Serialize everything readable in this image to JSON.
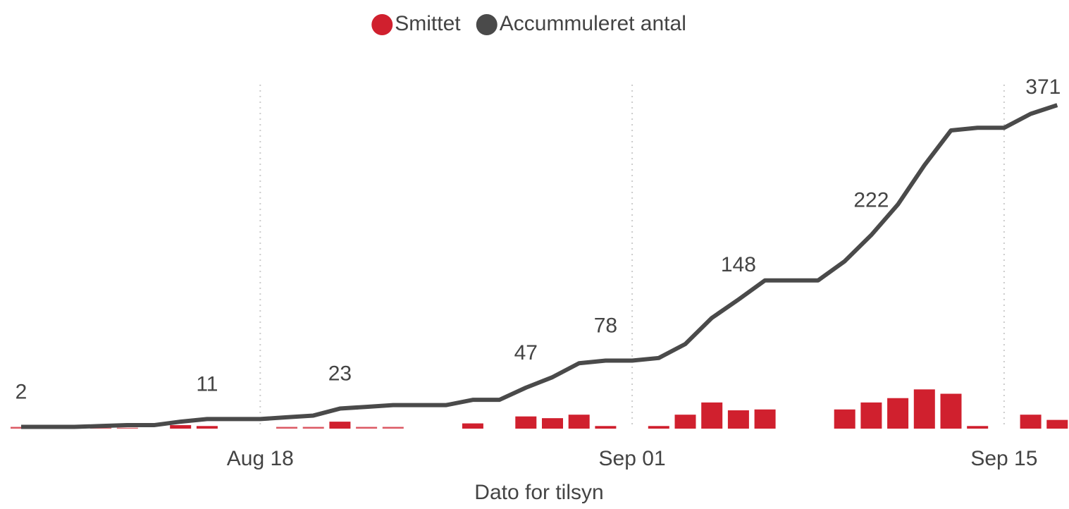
{
  "chart_data": {
    "type": "combo",
    "x_label": "Dato for tilsyn",
    "categories": [
      null,
      null,
      null,
      null,
      null,
      null,
      null,
      null,
      null,
      "Aug 18",
      null,
      null,
      null,
      null,
      null,
      null,
      null,
      null,
      null,
      null,
      null,
      null,
      null,
      "Sep 01",
      null,
      null,
      null,
      null,
      null,
      null,
      null,
      null,
      null,
      null,
      null,
      null,
      null,
      "Sep 15",
      null,
      null
    ],
    "ylim": [
      0,
      380
    ],
    "grid": true,
    "legend": "top",
    "series": [
      {
        "name": "Smittet",
        "type": "bar",
        "color": "#d0202e",
        "values": [
          2,
          null,
          null,
          1,
          1,
          null,
          4,
          3,
          null,
          null,
          2,
          2,
          8,
          2,
          2,
          null,
          null,
          6,
          null,
          14,
          12,
          16,
          3,
          null,
          3,
          16,
          30,
          21,
          22,
          null,
          null,
          22,
          30,
          35,
          45,
          40,
          3,
          null,
          16,
          10
        ]
      },
      {
        "name": "Accummuleret antal",
        "type": "line",
        "color": "#4a4a4a",
        "values": [
          2,
          2,
          2,
          3,
          4,
          4,
          8,
          11,
          11,
          11,
          13,
          15,
          23,
          25,
          27,
          27,
          27,
          33,
          33,
          47,
          59,
          75,
          78,
          78,
          81,
          97,
          127,
          148,
          170,
          170,
          170,
          192,
          222,
          257,
          302,
          342,
          345,
          345,
          361,
          371
        ],
        "value_labels": [
          "2",
          null,
          null,
          null,
          null,
          null,
          null,
          "11",
          null,
          null,
          null,
          null,
          "23",
          null,
          null,
          null,
          null,
          null,
          null,
          "47",
          null,
          null,
          "78",
          null,
          null,
          null,
          null,
          "148",
          null,
          null,
          null,
          null,
          "222",
          null,
          null,
          null,
          null,
          null,
          null,
          "371"
        ]
      }
    ]
  }
}
